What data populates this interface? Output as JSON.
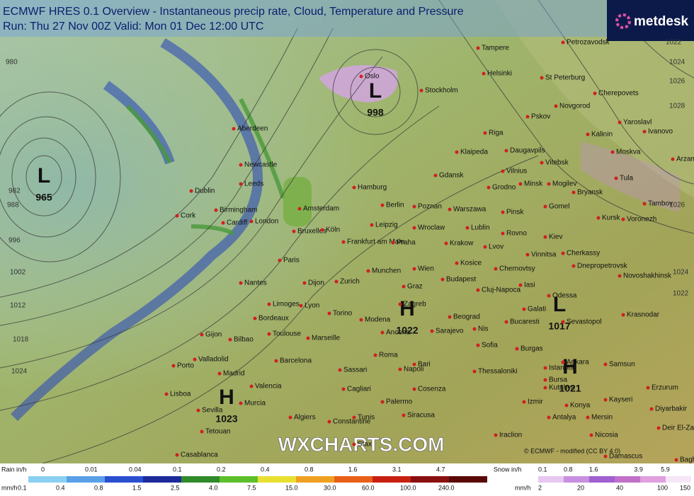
{
  "header": {
    "title": "ECMWF HRES 0.1 Overview - Instantaneous precip rate, Cloud, Temperature and Pressure",
    "run": "Run: Thu 27 Nov 00Z Valid: Mon 01 Dec 12:00 UTC"
  },
  "logo": "metdesk",
  "watermark": "WXCHARTS.COM",
  "copyright": "© ECMWF - modified (CC BY 4.0)",
  "pressure_centers": [
    {
      "letter": "L",
      "value": "965"
    },
    {
      "letter": "L",
      "value": "998"
    },
    {
      "letter": "H",
      "value": "1023"
    },
    {
      "letter": "H",
      "value": "1022"
    },
    {
      "letter": "L",
      "value": "1017"
    },
    {
      "letter": "H",
      "value": "1021"
    }
  ],
  "isobar_labels": [
    "980",
    "982",
    "988",
    "996",
    "1002",
    "1012",
    "1018",
    "1024",
    "1022",
    "1024",
    "1026",
    "1028",
    "1026",
    "1024",
    "1022"
  ],
  "cities": [
    "Tampere",
    "Petrozavodsk",
    "Oslo",
    "Stockholm",
    "Helsinki",
    "St Peterburg",
    "Cherepovets",
    "Novgorod",
    "Pskov",
    "Yaroslavl",
    "Ivanovo",
    "Kalinin",
    "Riga",
    "Aberdeen",
    "Moskva",
    "Arzamas",
    "Klaipeda",
    "Daugavpils",
    "Newcastle",
    "Vitebsk",
    "Vilnius",
    "Tula",
    "Dublin",
    "Leeds",
    "Minsk",
    "Mogilev",
    "Bryansk",
    "Gdansk",
    "Hamburg",
    "Grodno",
    "Tambov",
    "Berlin",
    "Poznan",
    "Warszawa",
    "Pinsk",
    "Gomel",
    "Birmingham",
    "Amsterdam",
    "Cork",
    "Kursk",
    "Voronezh",
    "Cardiff",
    "London",
    "Leipzig",
    "Wroclaw",
    "Lublin",
    "Rovno",
    "Kiev",
    "Bruxelles",
    "Köln",
    "Frankfurt am Main",
    "Praha",
    "Krakow",
    "Lvov",
    "Vinnitsa",
    "Cherkassy",
    "Paris",
    "Chernovtsy",
    "Dnepropetrovsk",
    "Kosice",
    "Munchen",
    "Wien",
    "Novoshakhinsk",
    "Nantes",
    "Dijon",
    "Zurich",
    "Budapest",
    "Cluj-Napoca",
    "Iasi",
    "Graz",
    "Odessa",
    "Limoges",
    "Lyon",
    "Torino",
    "Zagreb",
    "Galati",
    "Krasnodar",
    "Bordeaux",
    "Modena",
    "Beograd",
    "Sevastopol",
    "Gijon",
    "Toulouse",
    "Marseille",
    "Bilbao",
    "Sarajevo",
    "Bucaresti",
    "Nis",
    "Sofia",
    "Burgas",
    "Ancona",
    "Porto",
    "Valladolid",
    "Barcelona",
    "Roma",
    "Istanbul",
    "Samsun",
    "Madrid",
    "Sassari",
    "Napoli",
    "Bari",
    "Thessaloniki",
    "Bursa",
    "Erzurum",
    "Valencia",
    "Cagliari",
    "Cosenza",
    "Ankara",
    "Kutahya",
    "Kayseri",
    "Lisboa",
    "Murcia",
    "Palermo",
    "Siracusa",
    "Izmir",
    "Konya",
    "Diyarbakir",
    "Sevilla",
    "Algiers",
    "Constantine",
    "Tunis",
    "Antalya",
    "Mersin",
    "Tetouan",
    "Sfax",
    "Iraclion",
    "Nicosia",
    "Deir El-Zar",
    "Casablanca",
    "Damascus",
    "Baghdad"
  ],
  "legend": {
    "rain_label": "Rain in/h",
    "rain_inh": [
      "0",
      "0.01",
      "0.04",
      "0.1",
      "0.2",
      "0.4",
      "0.8",
      "1.6",
      "3.1",
      "4.7"
    ],
    "rain_mm_label": "mm/h",
    "rain_mm": [
      "0.1",
      "0.4",
      "0.8",
      "1.5",
      "2.5",
      "4.0",
      "7.5",
      "15.0",
      "30.0",
      "60.0",
      "100.0",
      "240.0"
    ],
    "snow_label": "Snow in/h",
    "snow_inh": [
      "0.1",
      "0.8",
      "1.6",
      "3.9",
      "5.9"
    ],
    "snow_mm_label": "mm/h",
    "snow_mm": [
      "2",
      "20",
      "40",
      "100",
      "150"
    ]
  }
}
